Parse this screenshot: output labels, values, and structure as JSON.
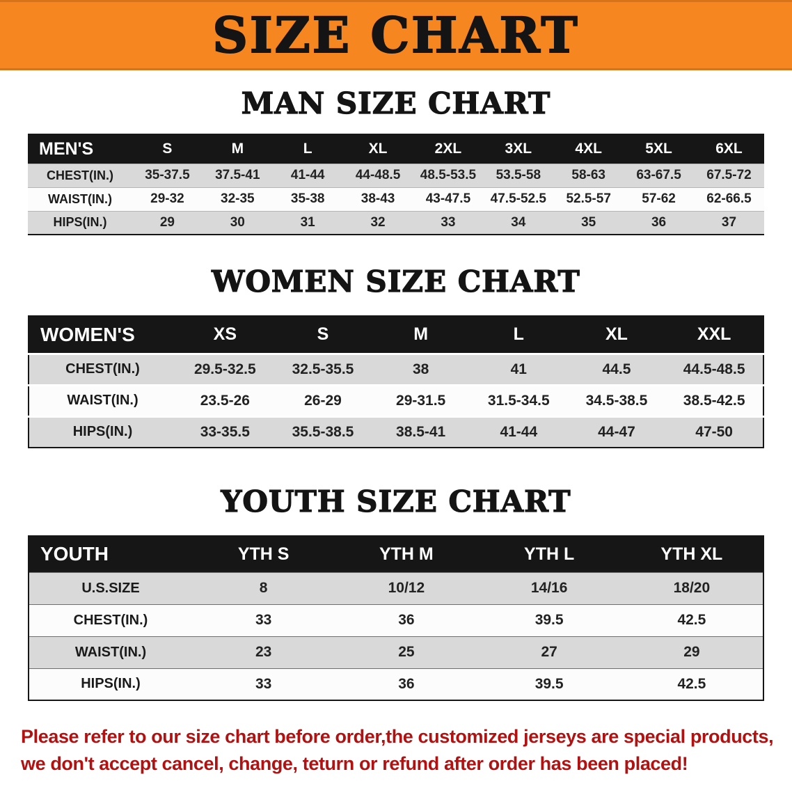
{
  "banner": {
    "title": "SIZE CHART",
    "bg_color": "#f6861f"
  },
  "sections": [
    {
      "heading": "MAN SIZE CHART",
      "table": {
        "header": [
          "MEN'S",
          "S",
          "M",
          "L",
          "XL",
          "2XL",
          "3XL",
          "4XL",
          "5XL",
          "6XL"
        ],
        "rows": [
          [
            "CHEST(IN.)",
            "35-37.5",
            "37.5-41",
            "41-44",
            "44-48.5",
            "48.5-53.5",
            "53.5-58",
            "58-63",
            "63-67.5",
            "67.5-72"
          ],
          [
            "WAIST(IN.)",
            "29-32",
            "32-35",
            "35-38",
            "38-43",
            "43-47.5",
            "47.5-52.5",
            "52.5-57",
            "57-62",
            "62-66.5"
          ],
          [
            "HIPS(IN.)",
            "29",
            "30",
            "31",
            "32",
            "33",
            "34",
            "35",
            "36",
            "37"
          ]
        ]
      }
    },
    {
      "heading": "WOMEN SIZE CHART",
      "table": {
        "header": [
          "WOMEN'S",
          "XS",
          "S",
          "M",
          "L",
          "XL",
          "XXL"
        ],
        "rows": [
          [
            "CHEST(IN.)",
            "29.5-32.5",
            "32.5-35.5",
            "38",
            "41",
            "44.5",
            "44.5-48.5"
          ],
          [
            "WAIST(IN.)",
            "23.5-26",
            "26-29",
            "29-31.5",
            "31.5-34.5",
            "34.5-38.5",
            "38.5-42.5"
          ],
          [
            "HIPS(IN.)",
            "33-35.5",
            "35.5-38.5",
            "38.5-41",
            "41-44",
            "44-47",
            "47-50"
          ]
        ]
      }
    },
    {
      "heading": "YOUTH SIZE CHART",
      "table": {
        "header": [
          "YOUTH",
          "YTH S",
          "YTH M",
          "YTH L",
          "YTH XL"
        ],
        "rows": [
          [
            "U.S.SIZE",
            "8",
            "10/12",
            "14/16",
            "18/20"
          ],
          [
            "CHEST(IN.)",
            "33",
            "36",
            "39.5",
            "42.5"
          ],
          [
            "WAIST(IN.)",
            "23",
            "25",
            "27",
            "29"
          ],
          [
            "HIPS(IN.)",
            "33",
            "36",
            "39.5",
            "42.5"
          ]
        ]
      }
    }
  ],
  "disclaimer": {
    "line1": "Please refer to our size chart before order,the customized jerseys are special products,",
    "line2": "we don't accept cancel, change, teturn or refund after order has been placed!",
    "text_color": "#b01212"
  }
}
